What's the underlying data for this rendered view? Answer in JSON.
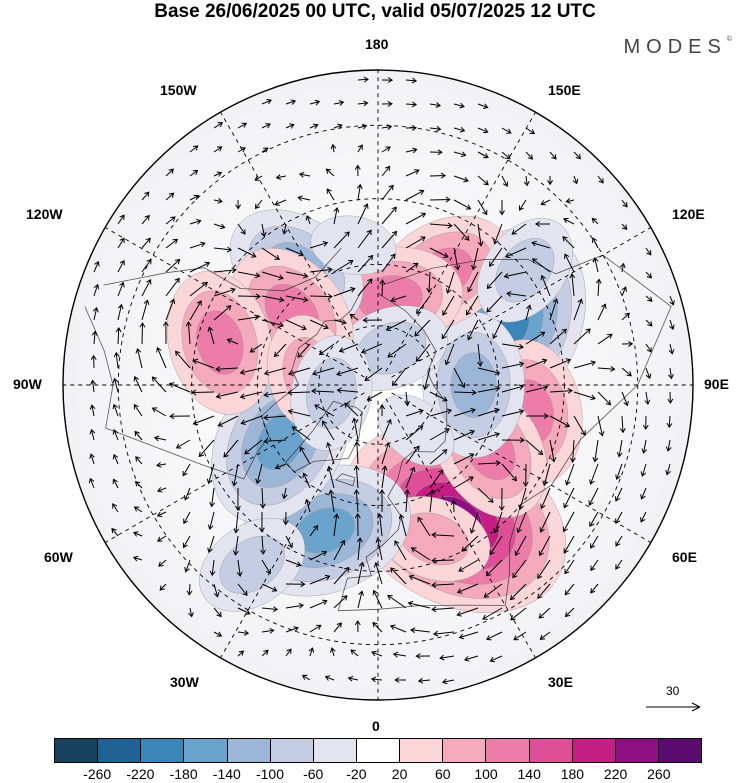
{
  "title": "Base 26/06/2025 00 UTC, valid 05/07/2025 12 UTC",
  "brand": "MODES",
  "brand_mark": "©",
  "map_labels": {
    "lon_180": "180",
    "lon_150w": "150W",
    "lon_150e": "150E",
    "lon_120w": "120W",
    "lon_120e": "120E",
    "lon_90w": "90W",
    "lon_90e": "90E",
    "lon_60w": "60W",
    "lon_60e": "60E",
    "lon_30w": "30W",
    "lon_30e": "30E",
    "lon_0": "0"
  },
  "vector_scale_label": "30",
  "colorbar": {
    "colors": [
      "#17435e",
      "#1f6394",
      "#3a86b6",
      "#6aa3cc",
      "#9cb6d8",
      "#c5cde4",
      "#e4e4f0",
      "#ffffff",
      "#fbd6d8",
      "#f4a9bd",
      "#ec7ca8",
      "#df4f97",
      "#c41e85",
      "#8e0f82",
      "#5a0c6e"
    ],
    "ticks": [
      "-260",
      "-220",
      "-180",
      "-140",
      "-100",
      "-60",
      "-20",
      "20",
      "60",
      "100",
      "140",
      "180",
      "220",
      "260"
    ]
  },
  "anomaly_centers": [
    {
      "lon": 30,
      "lat": 52,
      "value": 230
    },
    {
      "lon": 20,
      "lat": 50,
      "value": 60
    },
    {
      "lon": -20,
      "lat": 52,
      "value": -150
    },
    {
      "lon": -60,
      "lat": 62,
      "value": -170
    },
    {
      "lon": 115,
      "lat": 55,
      "value": -210
    },
    {
      "lon": 80,
      "lat": 52,
      "value": 110
    },
    {
      "lon": 60,
      "lat": 58,
      "value": 120
    },
    {
      "lon": 90,
      "lat": 66,
      "value": -120
    },
    {
      "lon": 150,
      "lat": 58,
      "value": 120
    },
    {
      "lon": 172,
      "lat": 68,
      "value": 110
    },
    {
      "lon": 160,
      "lat": 80,
      "value": -60
    },
    {
      "lon": -145,
      "lat": 55,
      "value": -130
    },
    {
      "lon": -130,
      "lat": 62,
      "value": 120
    },
    {
      "lon": -105,
      "lat": 50,
      "value": 130
    },
    {
      "lon": -100,
      "lat": 72,
      "value": 60
    },
    {
      "lon": -170,
      "lat": 55,
      "value": -50
    },
    {
      "lon": 128,
      "lat": 45,
      "value": -60
    },
    {
      "lon": -35,
      "lat": 38,
      "value": -70
    },
    {
      "lon": 40,
      "lat": 75,
      "value": -40
    },
    {
      "lon": -80,
      "lat": 78,
      "value": -60
    }
  ]
}
